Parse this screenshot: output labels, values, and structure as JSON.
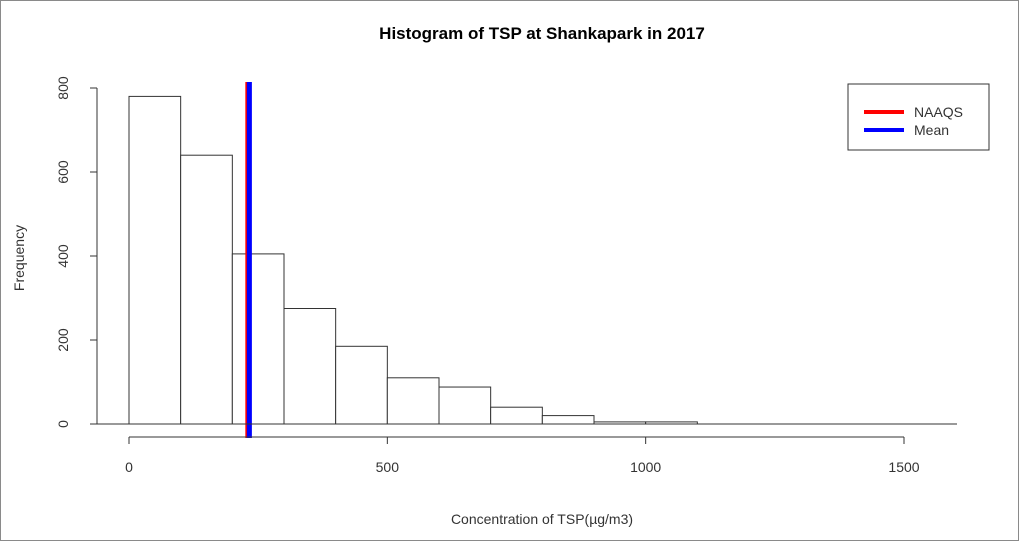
{
  "chart_data": {
    "type": "bar",
    "title": "Histogram of TSP at Shankapark in 2017",
    "xlabel": "Concentration of TSP(µg/m3)",
    "ylabel": "Frequency",
    "xlim": [
      0,
      1600
    ],
    "ylim": [
      0,
      800
    ],
    "x_ticks": [
      0,
      500,
      1000,
      1500
    ],
    "x_tick_labels": [
      "0",
      "500",
      "1000",
      "1500"
    ],
    "y_ticks": [
      0,
      200,
      400,
      600,
      800
    ],
    "y_tick_labels": [
      "0",
      "200",
      "400",
      "600",
      "800"
    ],
    "bins": [
      {
        "start": 0,
        "end": 100,
        "count": 780
      },
      {
        "start": 100,
        "end": 200,
        "count": 640
      },
      {
        "start": 200,
        "end": 300,
        "count": 405
      },
      {
        "start": 300,
        "end": 400,
        "count": 275
      },
      {
        "start": 400,
        "end": 500,
        "count": 185
      },
      {
        "start": 500,
        "end": 600,
        "count": 110
      },
      {
        "start": 600,
        "end": 700,
        "count": 88
      },
      {
        "start": 700,
        "end": 800,
        "count": 40
      },
      {
        "start": 800,
        "end": 900,
        "count": 20
      },
      {
        "start": 900,
        "end": 1000,
        "count": 5
      },
      {
        "start": 1000,
        "end": 1100,
        "count": 5
      }
    ],
    "reference_lines": [
      {
        "name": "NAAQS",
        "x": 230,
        "color": "#ff0000"
      },
      {
        "name": "Mean",
        "x": 233,
        "color": "#0000ff"
      }
    ],
    "legend": {
      "position": "top-right",
      "entries": [
        {
          "label": "NAAQS",
          "color": "#ff0000"
        },
        {
          "label": "Mean",
          "color": "#0000ff"
        }
      ]
    },
    "grid": false
  }
}
